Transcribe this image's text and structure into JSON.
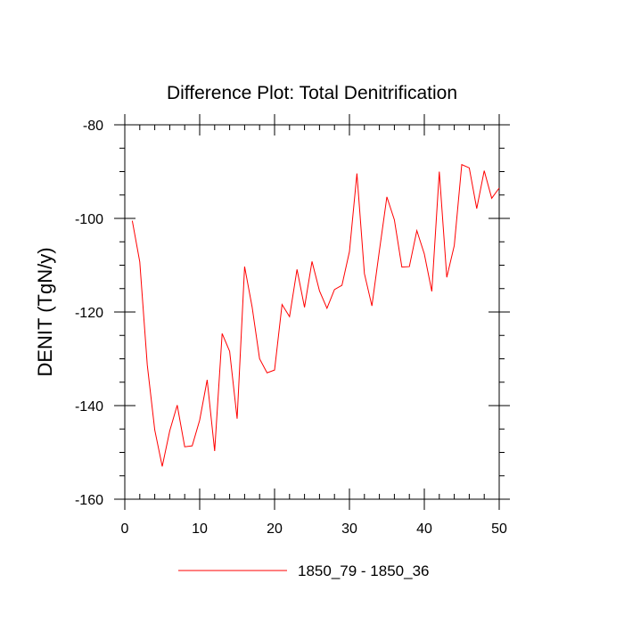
{
  "chart_data": {
    "type": "line",
    "title": "Difference Plot: Total Denitrification",
    "xlabel": "",
    "ylabel": "DENIT  (TgN/y)",
    "xlim": [
      0,
      50
    ],
    "ylim": [
      -160,
      -80
    ],
    "x_ticks": [
      0,
      10,
      20,
      30,
      40,
      50
    ],
    "x_tick_labels": [
      "0",
      "10",
      "20",
      "30",
      "40",
      "50"
    ],
    "y_ticks": [
      -160,
      -140,
      -120,
      -100,
      -80
    ],
    "y_tick_labels": [
      "-160",
      "-140",
      "-120",
      "-100",
      "-80"
    ],
    "grid": false,
    "legend_position": "bottom",
    "series": [
      {
        "name": "1850_79 - 1850_36",
        "color": "#ff0000",
        "x": [
          1,
          2,
          3,
          4,
          5,
          6,
          7,
          8,
          9,
          10,
          11,
          12,
          13,
          14,
          15,
          16,
          17,
          18,
          19,
          20,
          21,
          22,
          23,
          24,
          25,
          26,
          27,
          28,
          29,
          30,
          31,
          32,
          33,
          34,
          35,
          36,
          37,
          38,
          39,
          40,
          41,
          42,
          43,
          44,
          45,
          46,
          47,
          48,
          49,
          50
        ],
        "values": [
          -100.5,
          -109.3,
          -131.3,
          -145.2,
          -153.0,
          -145.4,
          -139.9,
          -148.8,
          -148.6,
          -143.1,
          -134.5,
          -149.7,
          -124.6,
          -128.4,
          -142.8,
          -110.3,
          -118.9,
          -130.0,
          -133.0,
          -132.4,
          -118.4,
          -121.0,
          -110.9,
          -119.0,
          -109.2,
          -115.5,
          -119.2,
          -115.2,
          -114.3,
          -107.1,
          -90.4,
          -111.8,
          -118.7,
          -106.9,
          -95.4,
          -100.3,
          -110.4,
          -110.3,
          -102.6,
          -107.6,
          -115.6,
          -90.0,
          -112.6,
          -105.8,
          -88.5,
          -89.2,
          -97.9,
          -89.8,
          -95.7,
          -93.5
        ]
      }
    ]
  }
}
